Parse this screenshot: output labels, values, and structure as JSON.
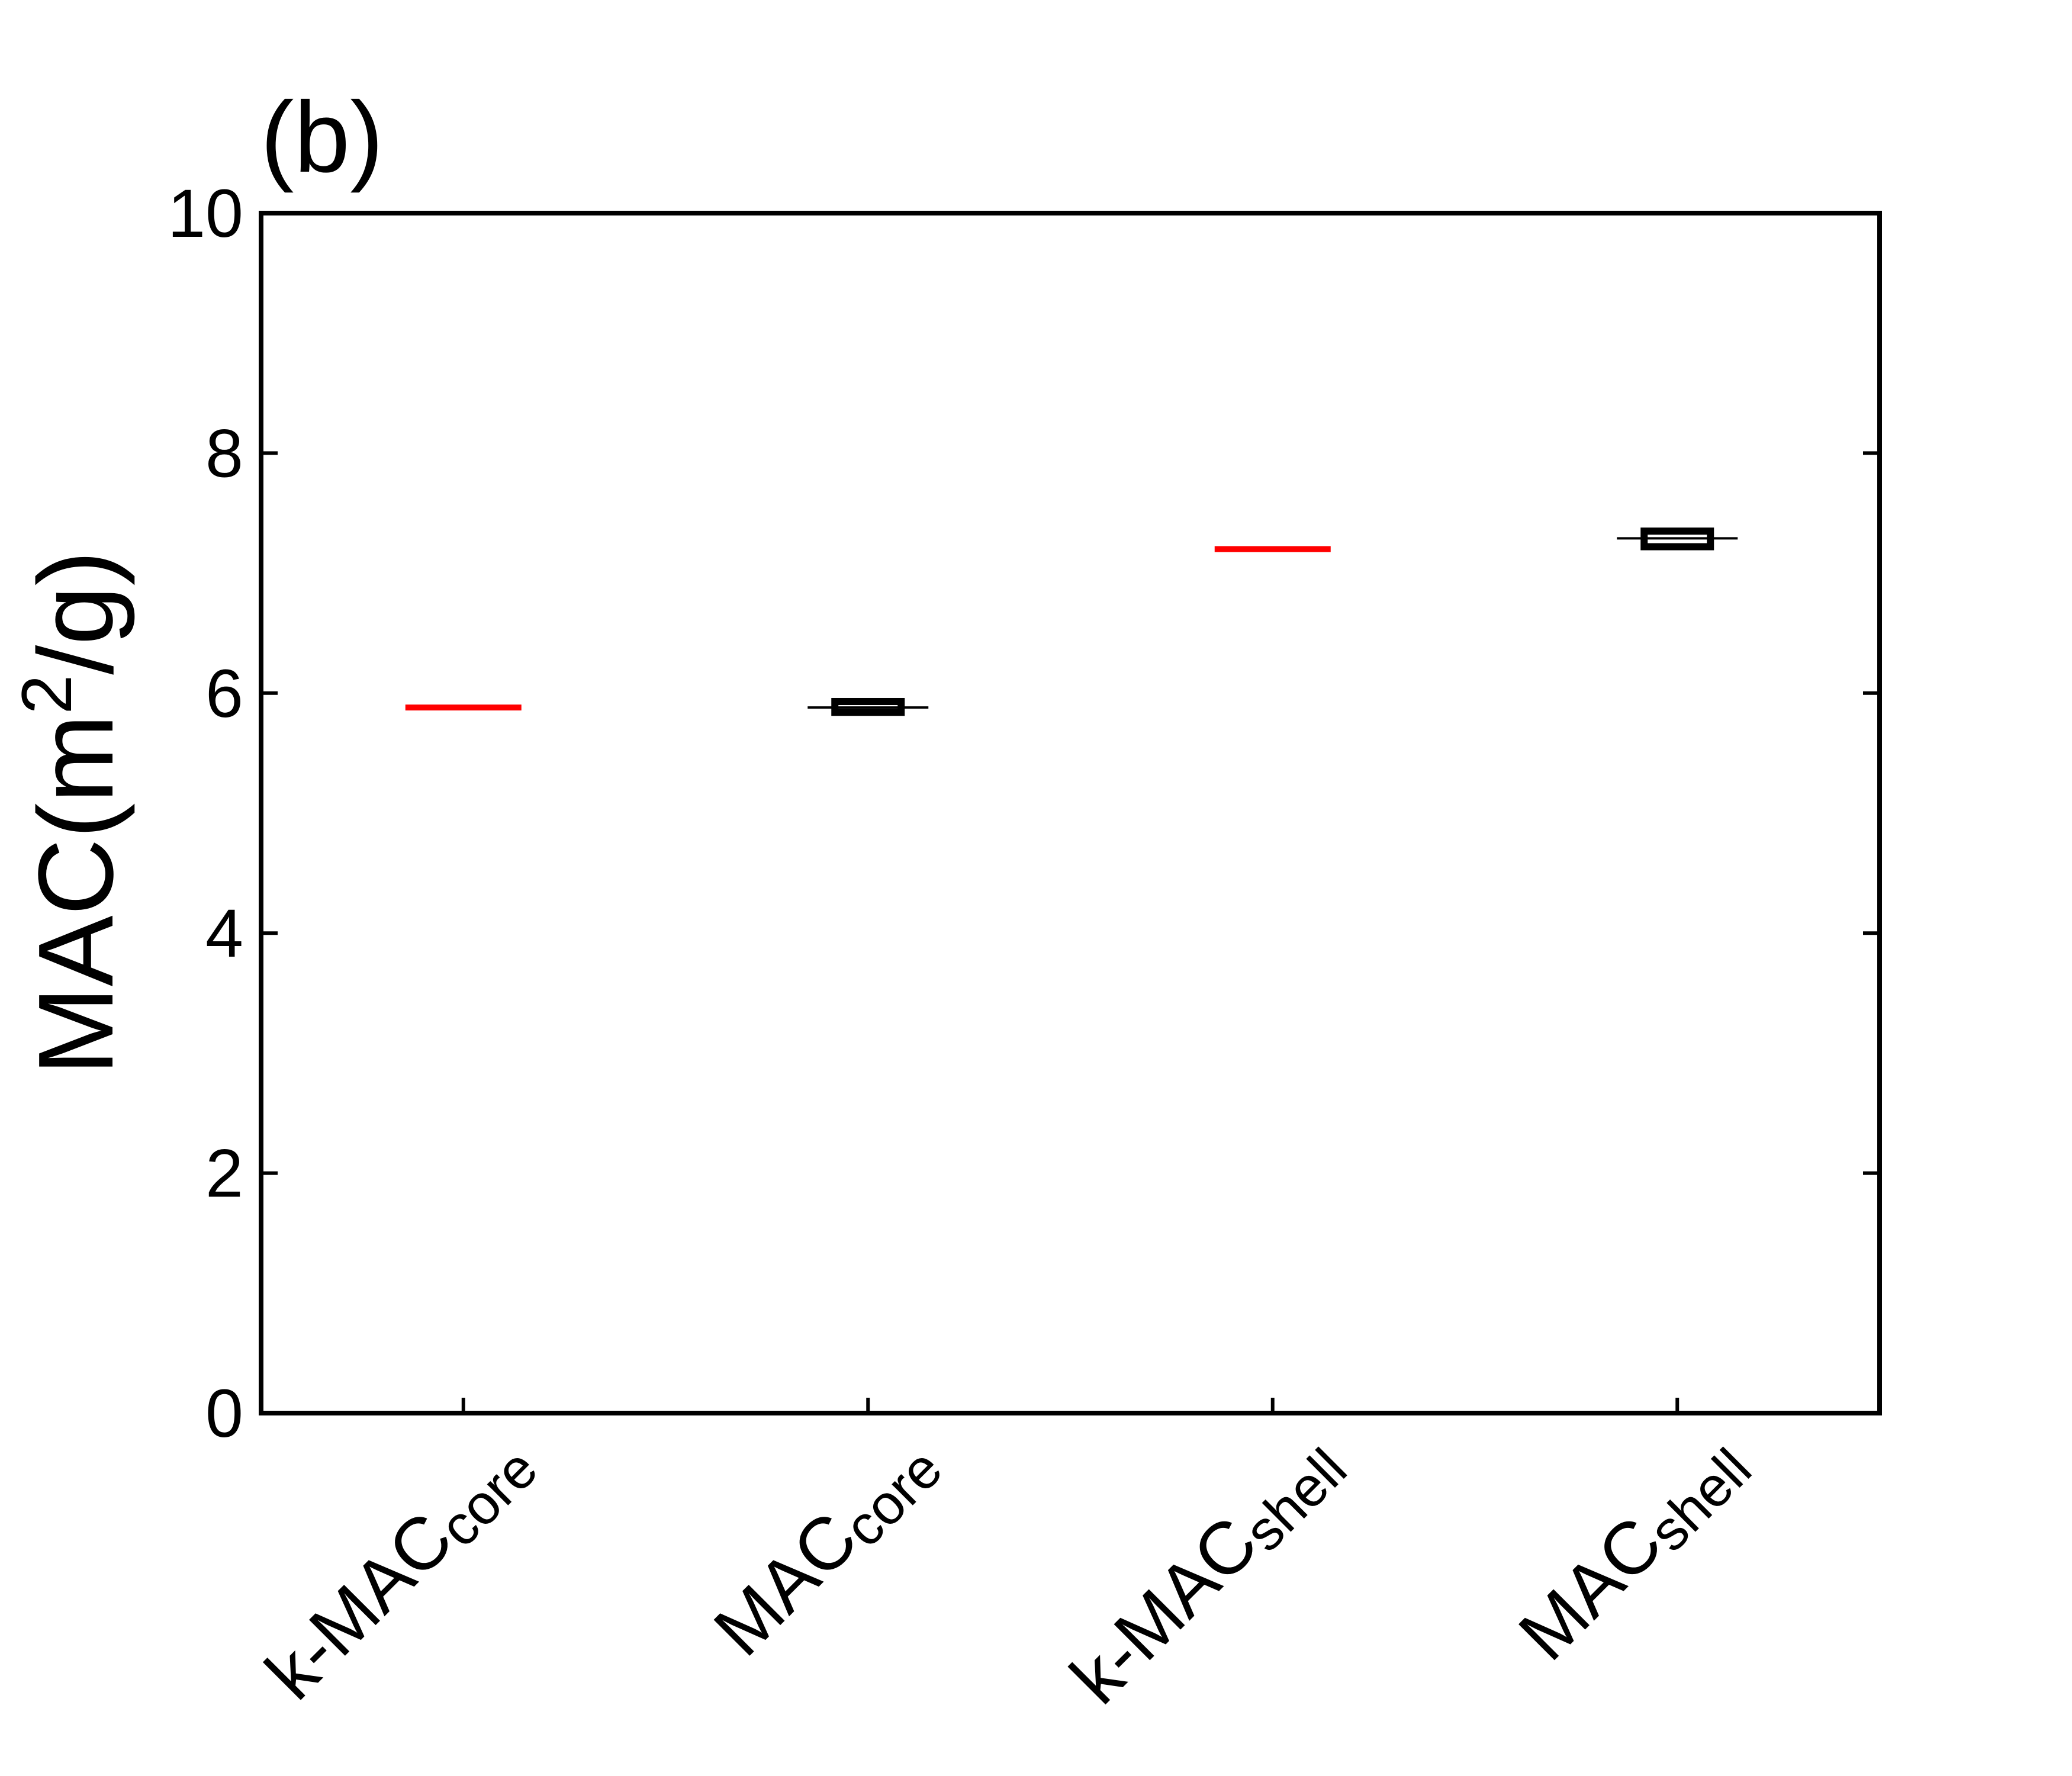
{
  "chart_data": {
    "type": "box",
    "title": "(b)",
    "y_label": {
      "text": "MAC(m",
      "superscript": "2",
      "suffix": "/g)"
    },
    "categories": [
      "k-MAC",
      "MAC",
      "k-MAC",
      "MAC"
    ],
    "category_subscripts": [
      "core",
      "core",
      "shell",
      "shell"
    ],
    "reference_lines": {
      "color": "#ff0000",
      "values": [
        5.88,
        null,
        7.2,
        null
      ]
    },
    "boxes": {
      "color": "#000000",
      "q1": [
        null,
        5.84,
        null,
        7.22
      ],
      "median": [
        null,
        5.88,
        null,
        7.29
      ],
      "q3": [
        null,
        5.93,
        null,
        7.35
      ]
    },
    "ylim": [
      0,
      10
    ],
    "yticks": [
      0,
      2,
      4,
      6,
      8,
      10
    ],
    "grid": false
  }
}
